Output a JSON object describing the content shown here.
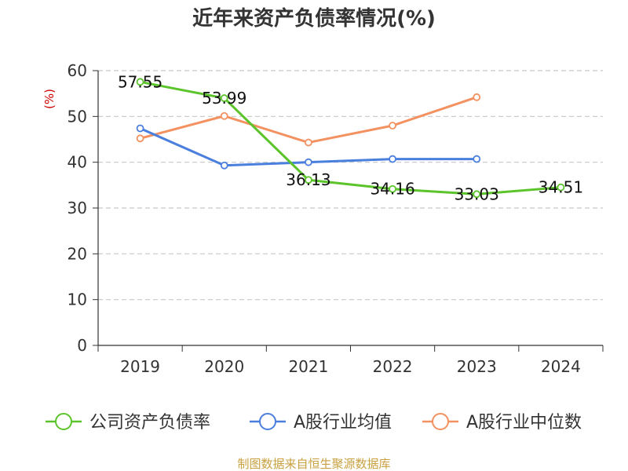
{
  "chart_data": {
    "type": "line",
    "title": "近年来资产负债率情况(%)",
    "ylabel": "(%)",
    "xlabel": "",
    "categories": [
      "2019",
      "2020",
      "2021",
      "2022",
      "2023",
      "2024"
    ],
    "ylim": [
      0,
      60
    ],
    "yticks": [
      0,
      10,
      20,
      30,
      40,
      50,
      60
    ],
    "grid": true,
    "legend_position": "bottom",
    "series": [
      {
        "name": "公司资产负债率",
        "color": "#5cc42b",
        "values": [
          57.55,
          53.99,
          36.13,
          34.16,
          33.03,
          34.51
        ],
        "labels": [
          "57.55",
          "53.99",
          "36.13",
          "34.16",
          "33.03",
          "34.51"
        ]
      },
      {
        "name": "A股行业均值",
        "color": "#4a7fdd",
        "values": [
          47.4,
          39.3,
          40.0,
          40.7,
          40.7,
          null
        ]
      },
      {
        "name": "A股行业中位数",
        "color": "#f39160",
        "values": [
          45.2,
          50.1,
          44.3,
          48.0,
          54.2,
          null
        ]
      }
    ],
    "source": "制图数据来自恒生聚源数据库"
  }
}
